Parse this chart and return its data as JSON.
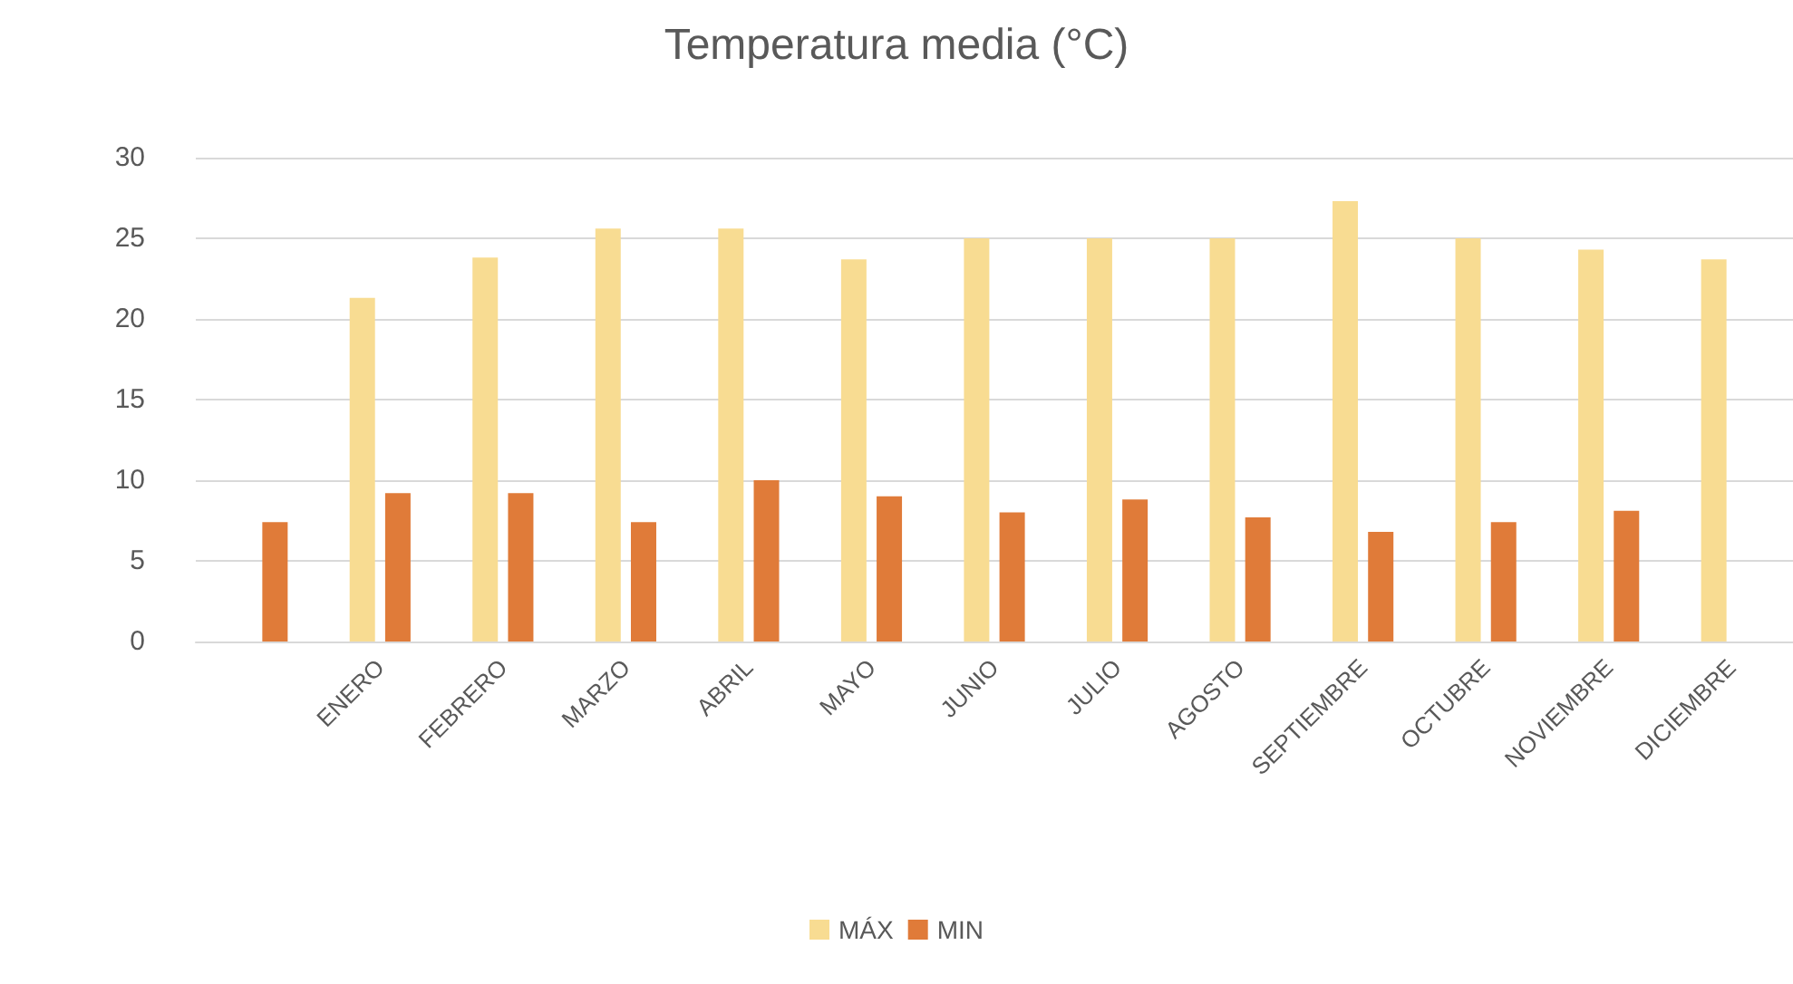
{
  "chart_data": {
    "type": "bar",
    "title": "Temperatura media (°C)",
    "categories": [
      null,
      "ENERO",
      "FEBRERO",
      "MARZO",
      "ABRIL",
      "MAYO",
      "JUNIO",
      "JULIO",
      "AGOSTO",
      "SEPTIEMBRE",
      "OCTUBRE",
      "NOVIEMBRE",
      "DICIEMBRE"
    ],
    "series": [
      {
        "name": "MÁX",
        "color": "#f8dc92",
        "values": [
          null,
          21.3,
          23.8,
          25.6,
          25.6,
          23.7,
          25,
          25,
          25,
          27.3,
          25,
          24.3,
          23.7
        ]
      },
      {
        "name": "MIN",
        "color": "#e07b39",
        "values": [
          7.4,
          9.2,
          9.2,
          7.4,
          10,
          9,
          8,
          8.8,
          7.7,
          6.8,
          7.4,
          8.1,
          null
        ]
      }
    ],
    "ylim": [
      0,
      30
    ],
    "yticks": [
      0,
      5,
      10,
      15,
      20,
      25,
      30
    ],
    "grid": "y",
    "legend": "bottom"
  }
}
